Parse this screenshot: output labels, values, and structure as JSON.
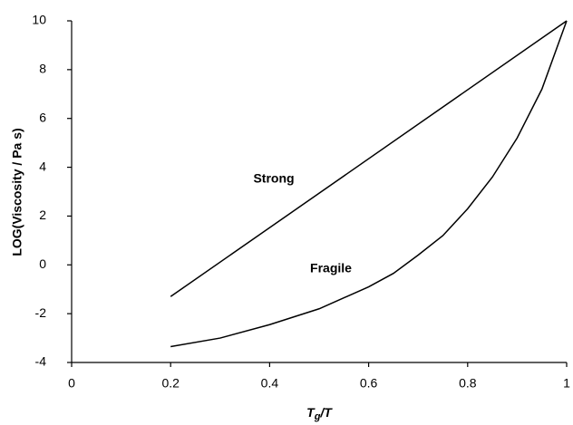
{
  "chart_data": {
    "type": "line",
    "y_label": "LOG(Viscosity / Pa s)",
    "x_label_parts": [
      "T",
      "g",
      "/T"
    ],
    "series": [
      {
        "name": "Strong",
        "color": "#000000",
        "x": [
          0.2,
          1.0
        ],
        "values": [
          -1.3,
          10
        ]
      },
      {
        "name": "Fragile",
        "color": "#000000",
        "x": [
          0.2,
          0.3,
          0.4,
          0.5,
          0.6,
          0.65,
          0.7,
          0.75,
          0.8,
          0.85,
          0.9,
          0.95,
          1.0
        ],
        "values": [
          -3.35,
          -3.0,
          -2.45,
          -1.8,
          -0.9,
          -0.35,
          0.4,
          1.2,
          2.3,
          3.6,
          5.2,
          7.2,
          10
        ]
      }
    ],
    "xlim": [
      0,
      1
    ],
    "ylim": [
      -4,
      10
    ],
    "xticks": [
      0,
      0.2,
      0.4,
      0.6,
      0.8,
      1
    ],
    "yticks": [
      -4,
      -2,
      0,
      2,
      4,
      6,
      8,
      10
    ],
    "grid": false
  }
}
